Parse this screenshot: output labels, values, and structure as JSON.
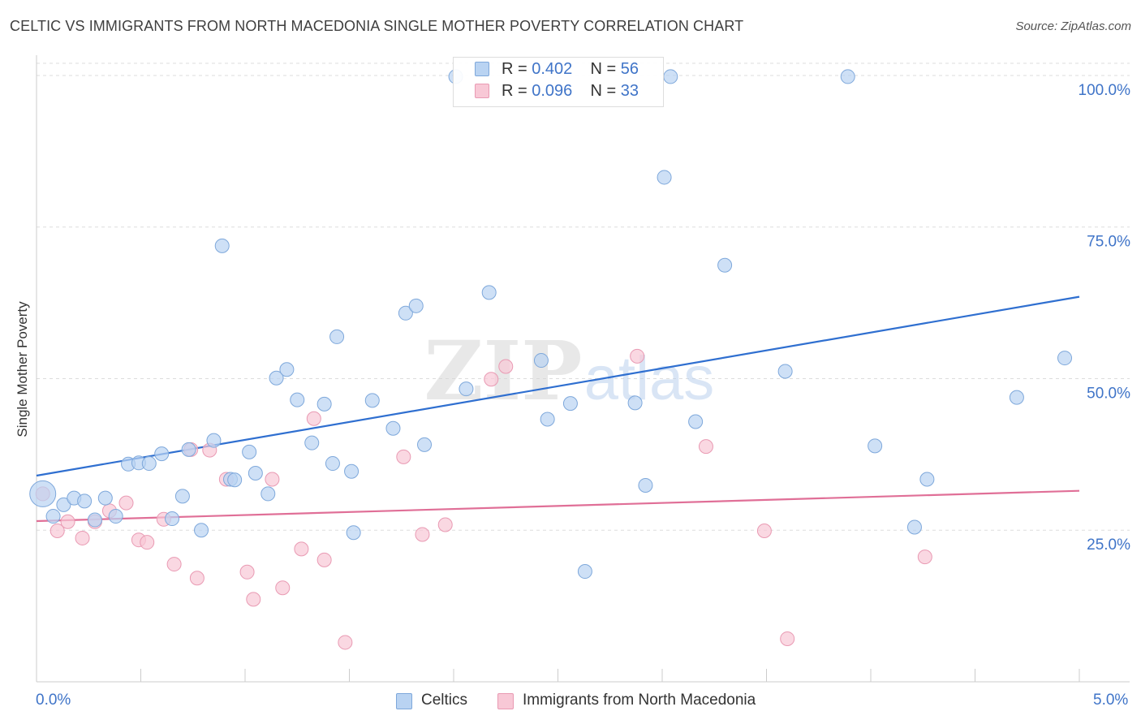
{
  "title": "CELTIC VS IMMIGRANTS FROM NORTH MACEDONIA SINGLE MOTHER POVERTY CORRELATION CHART",
  "source": "Source: ZipAtlas.com",
  "watermark": {
    "zip": "ZIP",
    "atlas": "atlas"
  },
  "colors": {
    "blue_fill": "#b9d3f2",
    "blue_stroke": "#7ea8db",
    "blue_line": "#2f6fd0",
    "pink_fill": "#f8c8d6",
    "pink_stroke": "#e99ab3",
    "pink_line": "#e06f97",
    "grid": "#dddddd",
    "axis": "#cccccc",
    "tick_label": "#3f74c8"
  },
  "legend": {
    "series": [
      {
        "name": "Celtics",
        "r_label": "R = ",
        "r_value": "0.402",
        "n_label": "N = ",
        "n_value": "56"
      },
      {
        "name": "Immigrants from North Macedonia",
        "r_label": "R = ",
        "r_value": "0.096",
        "n_label": "N = ",
        "n_value": "33"
      }
    ]
  },
  "chart_data": {
    "type": "scatter",
    "title": "CELTIC VS IMMIGRANTS FROM NORTH MACEDONIA SINGLE MOTHER POVERTY CORRELATION CHART",
    "xlabel": "",
    "ylabel": "Single Mother Poverty",
    "xlim": [
      0.0,
      5.0
    ],
    "ylim": [
      0.0,
      102.0
    ],
    "x_tick_labels": [
      "0.0%",
      "5.0%"
    ],
    "y_ticks": [
      25,
      50,
      75,
      100
    ],
    "y_tick_labels": [
      "25.0%",
      "50.0%",
      "75.0%",
      "100.0%"
    ],
    "grid": true,
    "series": [
      {
        "name": "Celtics",
        "trend": [
          [
            0.0,
            34.0
          ],
          [
            5.0,
            63.5
          ]
        ],
        "points": [
          [
            0.03,
            31.0,
            "large"
          ],
          [
            0.08,
            27.3
          ],
          [
            0.13,
            29.2
          ],
          [
            0.18,
            30.3
          ],
          [
            0.23,
            29.8
          ],
          [
            0.28,
            26.7
          ],
          [
            0.33,
            30.3
          ],
          [
            0.38,
            27.3
          ],
          [
            0.44,
            35.9
          ],
          [
            0.49,
            36.1
          ],
          [
            0.54,
            36.0
          ],
          [
            0.6,
            37.6
          ],
          [
            0.65,
            26.9
          ],
          [
            0.7,
            30.6
          ],
          [
            0.73,
            38.3
          ],
          [
            0.79,
            25.0
          ],
          [
            0.85,
            39.8
          ],
          [
            0.89,
            71.9
          ],
          [
            0.93,
            33.4
          ],
          [
            0.95,
            33.3
          ],
          [
            1.02,
            37.9
          ],
          [
            1.05,
            34.4
          ],
          [
            1.11,
            31.0
          ],
          [
            1.15,
            50.1
          ],
          [
            1.2,
            51.5
          ],
          [
            1.25,
            46.5
          ],
          [
            1.32,
            39.4
          ],
          [
            1.38,
            45.8
          ],
          [
            1.42,
            36.0
          ],
          [
            1.44,
            56.9
          ],
          [
            1.51,
            34.7
          ],
          [
            1.52,
            24.6
          ],
          [
            1.61,
            46.4
          ],
          [
            1.71,
            41.8
          ],
          [
            1.77,
            60.8
          ],
          [
            1.82,
            62.0
          ],
          [
            1.86,
            39.1
          ],
          [
            2.01,
            99.8
          ],
          [
            2.06,
            48.3
          ],
          [
            2.17,
            64.2
          ],
          [
            2.42,
            53.0
          ],
          [
            2.45,
            43.3
          ],
          [
            2.56,
            45.9
          ],
          [
            2.63,
            18.2
          ],
          [
            2.87,
            46.0
          ],
          [
            2.92,
            32.4
          ],
          [
            3.01,
            83.2
          ],
          [
            3.04,
            99.8
          ],
          [
            3.16,
            42.9
          ],
          [
            3.3,
            68.7
          ],
          [
            3.59,
            51.2
          ],
          [
            3.89,
            99.8
          ],
          [
            4.02,
            38.9
          ],
          [
            4.21,
            25.5
          ],
          [
            4.27,
            33.4
          ],
          [
            4.7,
            46.9
          ],
          [
            4.93,
            53.4
          ]
        ]
      },
      {
        "name": "Immigrants from North Macedonia",
        "trend": [
          [
            0.0,
            26.5
          ],
          [
            5.0,
            31.5
          ]
        ],
        "points": [
          [
            0.03,
            31.0
          ],
          [
            0.1,
            24.9
          ],
          [
            0.15,
            26.4
          ],
          [
            0.22,
            23.7
          ],
          [
            0.28,
            26.4
          ],
          [
            0.35,
            28.2
          ],
          [
            0.43,
            29.5
          ],
          [
            0.49,
            23.4
          ],
          [
            0.53,
            23.0
          ],
          [
            0.61,
            26.8
          ],
          [
            0.66,
            19.4
          ],
          [
            0.74,
            38.3
          ],
          [
            0.77,
            17.1
          ],
          [
            0.83,
            38.2
          ],
          [
            0.91,
            33.4
          ],
          [
            1.01,
            18.1
          ],
          [
            1.04,
            13.6
          ],
          [
            1.13,
            33.4
          ],
          [
            1.18,
            15.5
          ],
          [
            1.27,
            21.9
          ],
          [
            1.33,
            43.4
          ],
          [
            1.38,
            20.1
          ],
          [
            1.48,
            6.5
          ],
          [
            1.76,
            37.1
          ],
          [
            1.85,
            24.3
          ],
          [
            1.96,
            25.9
          ],
          [
            2.18,
            49.9
          ],
          [
            2.25,
            52.0
          ],
          [
            2.88,
            53.7
          ],
          [
            3.21,
            38.8
          ],
          [
            3.49,
            24.9
          ],
          [
            3.6,
            7.1
          ],
          [
            4.26,
            20.6
          ]
        ]
      }
    ]
  }
}
